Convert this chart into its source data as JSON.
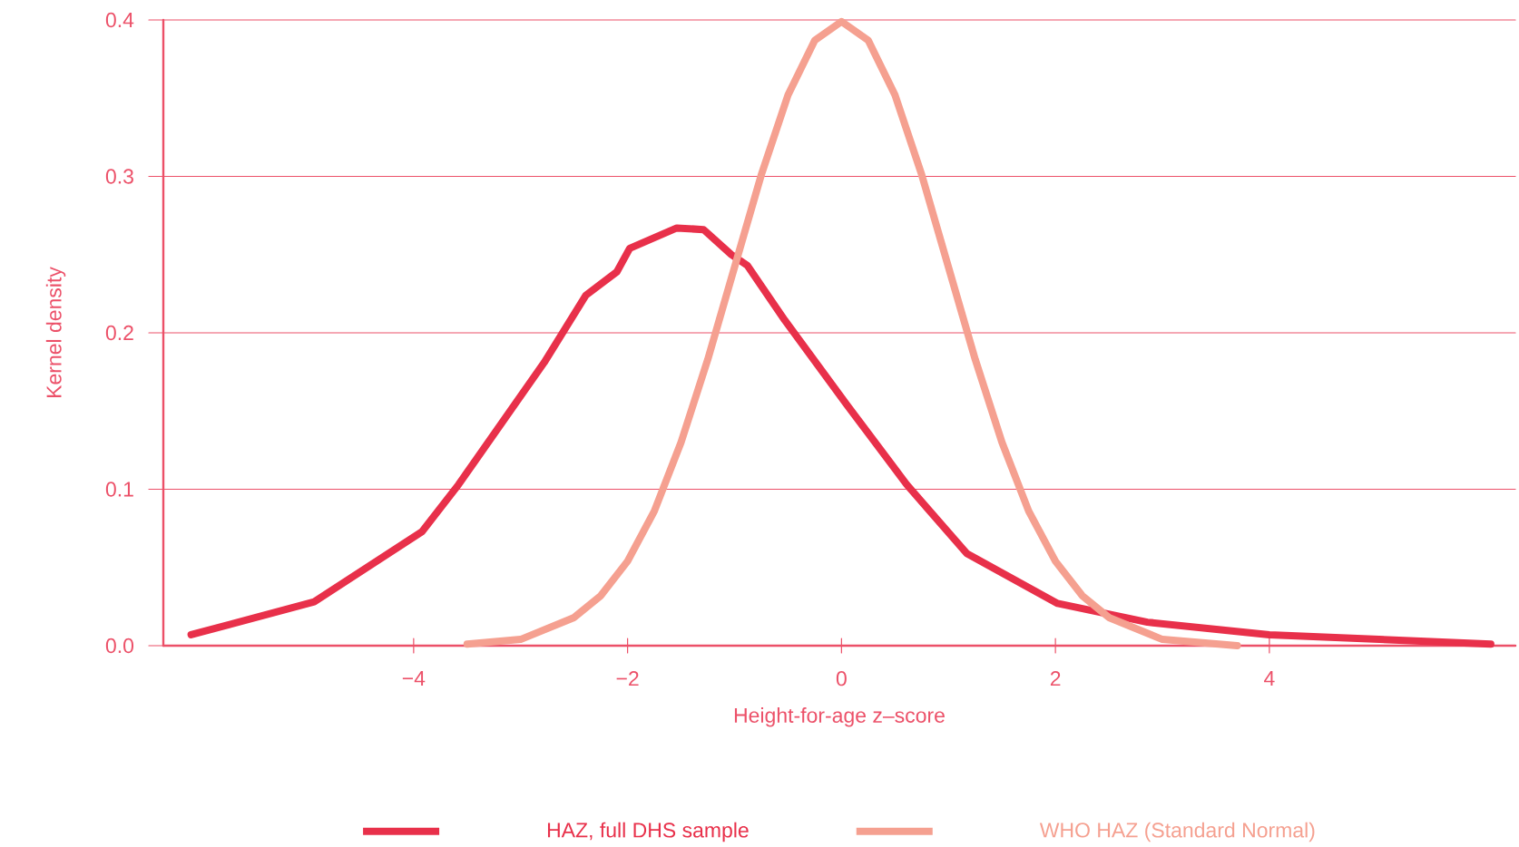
{
  "chart_data": {
    "type": "line",
    "xlabel": "Height-for-age z–score",
    "ylabel": "Kernel density",
    "xlim": [
      -6.34,
      6.3
    ],
    "ylim": [
      0,
      0.4
    ],
    "xticks": [
      {
        "value": -4,
        "label": "−4"
      },
      {
        "value": -2,
        "label": "−2"
      },
      0,
      2,
      4
    ],
    "yticks": [
      {
        "value": 0,
        "label": "0.0"
      },
      0.1,
      0.2,
      0.3,
      0.4
    ],
    "grid": "y",
    "legend": "bottom",
    "line_style": "solid",
    "marker": "none",
    "series": [
      {
        "name": "HAZ, full DHS sample",
        "color": "#e8304a",
        "x": [
          -6.08,
          -4.93,
          -3.92,
          -3.58,
          -2.78,
          -2.39,
          -2.1,
          -1.98,
          -1.54,
          -1.29,
          -1.03,
          -0.88,
          -0.53,
          0.05,
          0.61,
          1.17,
          2.02,
          2.86,
          4.0,
          6.07
        ],
        "values": [
          0.007,
          0.028,
          0.073,
          0.103,
          0.181,
          0.224,
          0.239,
          0.254,
          0.267,
          0.266,
          0.25,
          0.243,
          0.208,
          0.154,
          0.103,
          0.059,
          0.027,
          0.015,
          0.007,
          0.001
        ]
      },
      {
        "name": "WHO HAZ (Standard Normal)",
        "color": "#f5a090",
        "x": [
          -3.5,
          -3.0,
          -2.5,
          -2.25,
          -2.0,
          -1.75,
          -1.5,
          -1.25,
          -1.0,
          -0.75,
          -0.5,
          -0.25,
          0,
          0.25,
          0.5,
          0.75,
          1.0,
          1.25,
          1.5,
          1.75,
          2.0,
          2.25,
          2.5,
          3.0,
          3.7
        ],
        "values": [
          0.001,
          0.004,
          0.018,
          0.032,
          0.054,
          0.086,
          0.13,
          0.183,
          0.242,
          0.301,
          0.352,
          0.387,
          0.399,
          0.387,
          0.352,
          0.301,
          0.242,
          0.183,
          0.13,
          0.086,
          0.054,
          0.032,
          0.018,
          0.004,
          0.0
        ]
      }
    ]
  }
}
